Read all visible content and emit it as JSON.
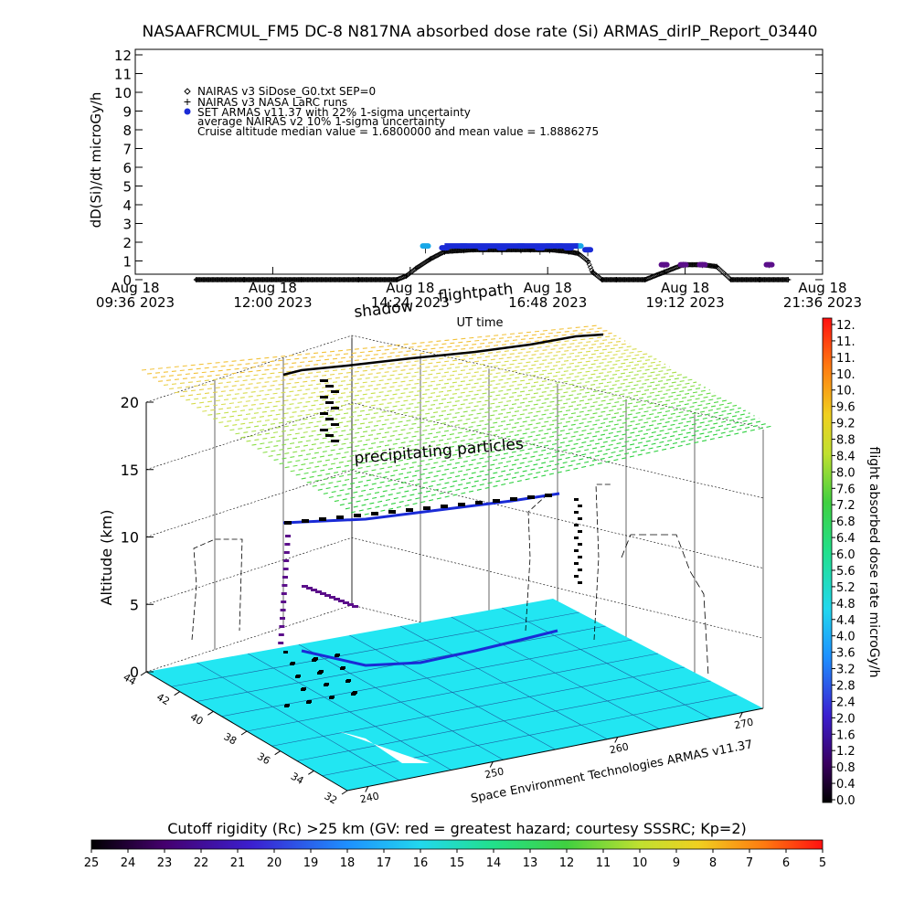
{
  "chart_data": [
    {
      "type": "scatter",
      "title": "NASAAFRCMUL_FM5 DC-8   N817NA absorbed dose rate (Si) ARMAS_dirIP_Report_03440",
      "ylabel": "dD(Si)/dt microGy/h",
      "xlabel": "UT time",
      "ylim": [
        0,
        12
      ],
      "y_ticks": [
        "0",
        "1",
        "2",
        "3",
        "4",
        "5",
        "6",
        "7",
        "8",
        "9",
        "10",
        "11",
        "12"
      ],
      "x_ticks": [
        {
          "date": "Aug 18",
          "time": "09:36 2023"
        },
        {
          "date": "Aug 18",
          "time": "12:00 2023"
        },
        {
          "date": "Aug 18",
          "time": "14:24 2023"
        },
        {
          "date": "Aug 18",
          "time": "16:48 2023"
        },
        {
          "date": "Aug 18",
          "time": "19:12 2023"
        },
        {
          "date": "Aug 18",
          "time": "21:36 2023"
        }
      ],
      "legend": [
        "NAIRAS v3 SiDose_G0.txt SEP=0",
        "NAIRAS v3 NASA LaRC runs",
        "SET ARMAS v11.37 with 22% 1-sigma uncertainty",
        "average NAIRAS v2 10% 1-sigma uncertainty",
        "Cruise altitude median value = 1.6800000 and mean value = 1.8886275"
      ],
      "legend_placement": "top-left",
      "series": [
        {
          "name": "NAIRAS v3 SiDose_G0.txt SEP=0",
          "x": [
            "10:40",
            "11:30",
            "12:30",
            "13:30",
            "14:10",
            "14:20",
            "14:30",
            "14:45",
            "15:00",
            "15:30",
            "16:00",
            "16:30",
            "16:50",
            "17:10",
            "17:20",
            "17:30",
            "17:35",
            "17:45",
            "18:00",
            "18:30",
            "18:50",
            "19:10",
            "19:30",
            "19:45",
            "20:00",
            "20:30",
            "21:00"
          ],
          "values": [
            0.0,
            0.0,
            0.0,
            0.0,
            0.0,
            0.2,
            0.6,
            1.1,
            1.5,
            1.6,
            1.6,
            1.6,
            1.6,
            1.5,
            1.4,
            1.0,
            0.4,
            0.0,
            0.0,
            0.0,
            0.4,
            0.8,
            0.8,
            0.7,
            0.0,
            0.0,
            0.0
          ]
        },
        {
          "name": "SET ARMAS v11.37 with 22% 1-sigma uncertainty",
          "x": [
            "14:40",
            "15:00",
            "15:20",
            "15:40",
            "16:00",
            "16:20",
            "16:40",
            "16:50",
            "17:00",
            "17:10",
            "17:20",
            "17:30",
            "18:50",
            "19:10",
            "19:30",
            "20:40"
          ],
          "values": [
            1.8,
            1.7,
            1.8,
            1.7,
            1.7,
            1.8,
            1.7,
            1.8,
            1.8,
            1.7,
            1.8,
            1.6,
            0.8,
            0.8,
            0.8,
            0.8
          ]
        }
      ]
    },
    {
      "type": "scatter",
      "zlabel": "Altitude (km)",
      "z_ticks": [
        "0",
        "5",
        "10",
        "15",
        "20"
      ],
      "lat_ticks": [
        "44",
        "42",
        "40",
        "38",
        "36",
        "34",
        "32"
      ],
      "lon_ticks": [
        "240",
        "250",
        "260",
        "270"
      ],
      "annotations": [
        "shadow",
        "flightpath",
        "precipitating particles"
      ],
      "credit": "Space Environment Technologies ARMAS v11.37",
      "colorbar_label": "flight absorbed dose rate microGy/h",
      "colorbar_ticks": [
        "12.",
        "11.",
        "11.",
        "10.",
        "10.",
        "9.6",
        "9.2",
        "8.8",
        "8.4",
        "8.0",
        "7.6",
        "7.2",
        "6.8",
        "6.4",
        "6.0",
        "5.6",
        "5.2",
        "4.8",
        "4.4",
        "4.0",
        "3.6",
        "3.2",
        "2.8",
        "2.4",
        "2.0",
        "1.6",
        "1.2",
        "0.8",
        "0.4",
        "0.0"
      ]
    },
    {
      "type": "heatmap",
      "title": "Cutoff rigidity (Rc) >25 km (GV: red = greatest hazard; courtesy SSSRC; Kp=2)",
      "colorbar_ticks": [
        "25",
        "24",
        "23",
        "22",
        "21",
        "20",
        "19",
        "18",
        "17",
        "16",
        "15",
        "14",
        "13",
        "12",
        "11",
        "10",
        "9",
        "8",
        "7",
        "6",
        "5"
      ]
    }
  ],
  "colors": {
    "armas": "#1a2bd6",
    "armas_high": "#19a8e8",
    "armas_low": "#5b0f8a",
    "ground": "#22e6f2",
    "nairas": "#000000"
  },
  "icons": {
    "legend_diamond": "diamond-icon",
    "legend_plus": "plus-icon",
    "legend_dot": "dot-icon"
  }
}
